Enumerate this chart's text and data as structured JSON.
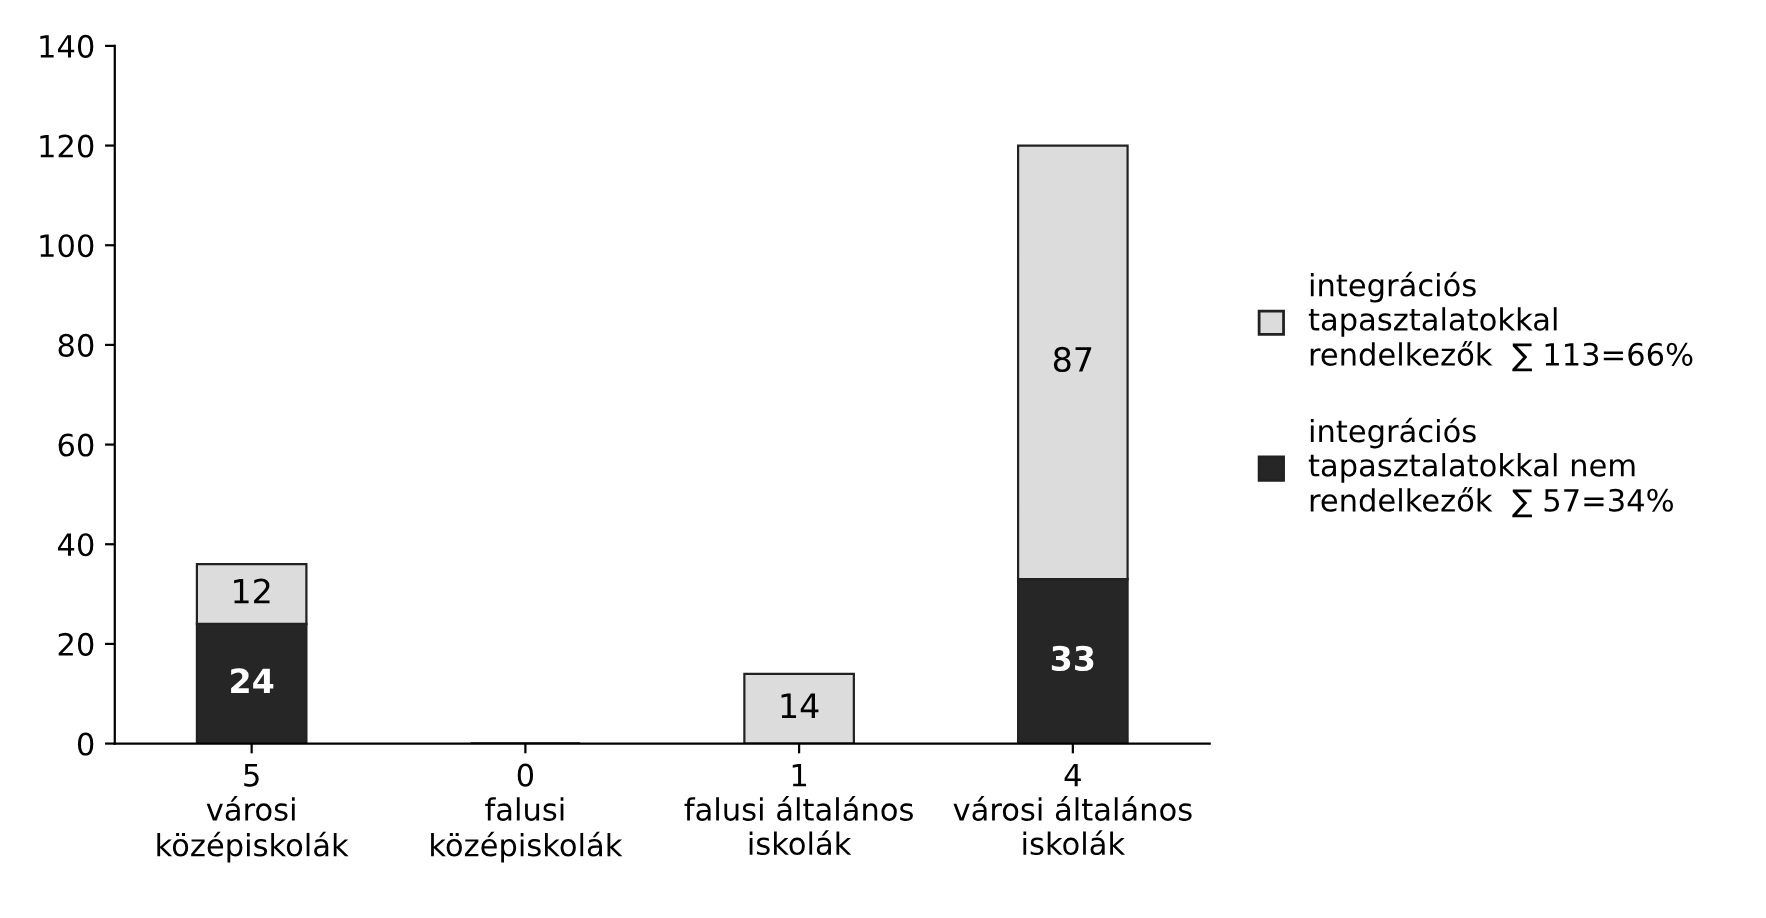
{
  "chart_data": {
    "type": "bar",
    "stacked": true,
    "categories": [
      "5\nvárosi\nközépiskolák",
      "0\nfalusi\nközépiskolák",
      "1\nfalusi általános\niskolák",
      "4\nvárosi általános\niskolák"
    ],
    "series": [
      {
        "name": "integrációs\ntapasztalatokkal nem\nrendelkezők  ∑ 57=34%",
        "color": "#262626",
        "values": [
          24,
          0,
          0,
          33
        ],
        "value_labels": [
          "24",
          null,
          null,
          "33"
        ]
      },
      {
        "name": "integrációs\ntapasztalatokkal\nrendelkezők  ∑ 113=66%",
        "color": "#dcdcdc",
        "values": [
          12,
          0,
          14,
          87
        ],
        "value_labels": [
          "12",
          null,
          "14",
          "87"
        ]
      }
    ],
    "ylim": [
      0,
      140
    ],
    "yticks": [
      0,
      20,
      40,
      60,
      80,
      100,
      120,
      140
    ],
    "grid": false,
    "legend": "right"
  }
}
